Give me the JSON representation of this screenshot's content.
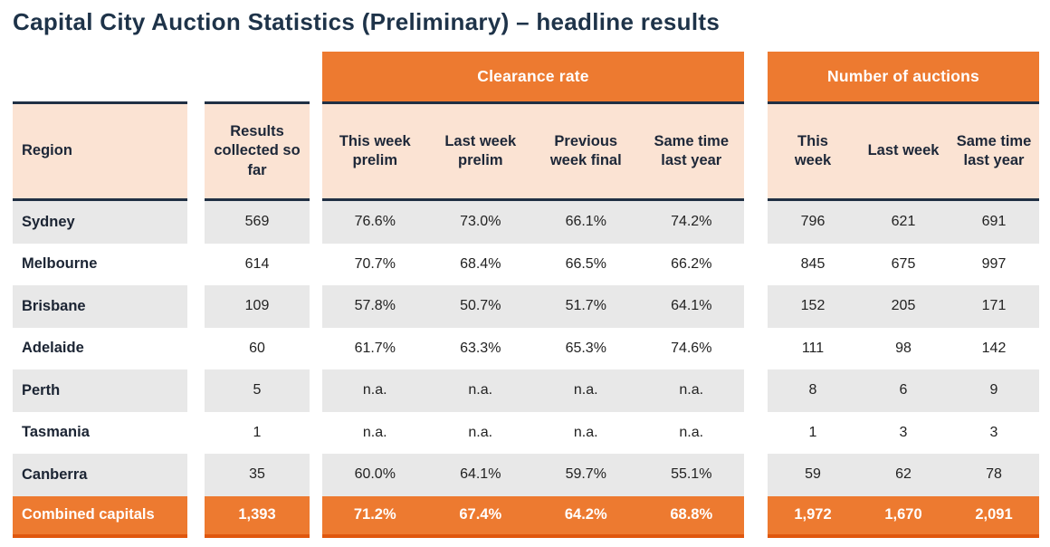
{
  "title": "Capital City Auction Statistics (Preliminary) – headline results",
  "colors": {
    "accent_orange": "#ED7A30",
    "accent_orange_dark": "#E0570E",
    "header_peach": "#FBE3D3",
    "stripe_gray": "#E8E8E8",
    "navy": "#203044"
  },
  "table": {
    "region_header": "Region",
    "results_header": "Results\ncollected so\nfar",
    "groups": [
      {
        "label": "Clearance rate",
        "columns": [
          "This week\nprelim",
          "Last week\nprelim",
          "Previous\nweek final",
          "Same time\nlast year"
        ]
      },
      {
        "label": "Number of auctions",
        "columns": [
          "This\nweek",
          "Last week",
          "Same time\nlast year"
        ]
      }
    ],
    "rows": [
      {
        "region": "Sydney",
        "results": "569",
        "clearance": [
          "76.6%",
          "73.0%",
          "66.1%",
          "74.2%"
        ],
        "auctions": [
          "796",
          "621",
          "691"
        ]
      },
      {
        "region": "Melbourne",
        "results": "614",
        "clearance": [
          "70.7%",
          "68.4%",
          "66.5%",
          "66.2%"
        ],
        "auctions": [
          "845",
          "675",
          "997"
        ]
      },
      {
        "region": "Brisbane",
        "results": "109",
        "clearance": [
          "57.8%",
          "50.7%",
          "51.7%",
          "64.1%"
        ],
        "auctions": [
          "152",
          "205",
          "171"
        ]
      },
      {
        "region": "Adelaide",
        "results": "60",
        "clearance": [
          "61.7%",
          "63.3%",
          "65.3%",
          "74.6%"
        ],
        "auctions": [
          "111",
          "98",
          "142"
        ]
      },
      {
        "region": "Perth",
        "results": "5",
        "clearance": [
          "n.a.",
          "n.a.",
          "n.a.",
          "n.a."
        ],
        "auctions": [
          "8",
          "6",
          "9"
        ]
      },
      {
        "region": "Tasmania",
        "results": "1",
        "clearance": [
          "n.a.",
          "n.a.",
          "n.a.",
          "n.a."
        ],
        "auctions": [
          "1",
          "3",
          "3"
        ]
      },
      {
        "region": "Canberra",
        "results": "35",
        "clearance": [
          "60.0%",
          "64.1%",
          "59.7%",
          "55.1%"
        ],
        "auctions": [
          "59",
          "62",
          "78"
        ]
      }
    ],
    "totals": {
      "region": "Combined capitals",
      "results": "1,393",
      "clearance": [
        "71.2%",
        "67.4%",
        "64.2%",
        "68.8%"
      ],
      "auctions": [
        "1,972",
        "1,670",
        "2,091"
      ]
    }
  }
}
